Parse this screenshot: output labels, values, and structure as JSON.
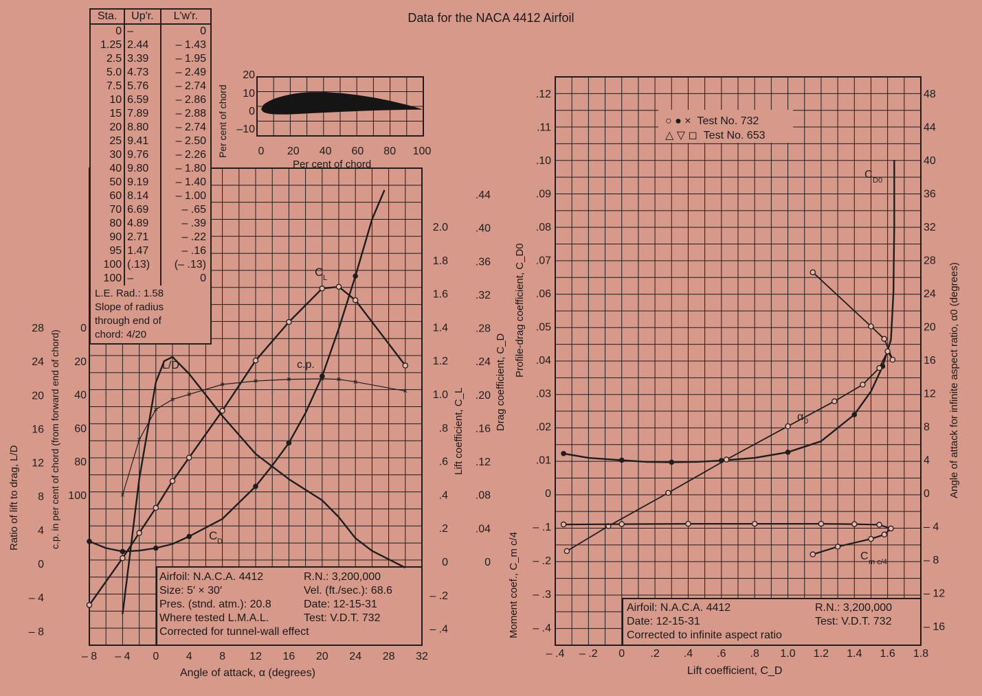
{
  "title": "Data for the NACA 4412 Airfoil",
  "ordinates": {
    "headers": [
      "Sta.",
      "Up'r.",
      "L'w'r."
    ],
    "rows": [
      [
        "0",
        "–",
        "0"
      ],
      [
        "1.25",
        "2.44",
        "– 1.43"
      ],
      [
        "2.5",
        "3.39",
        "– 1.95"
      ],
      [
        "5.0",
        "4.73",
        "– 2.49"
      ],
      [
        "7.5",
        "5.76",
        "– 2.74"
      ],
      [
        "10",
        "6.59",
        "– 2.86"
      ],
      [
        "15",
        "7.89",
        "– 2.88"
      ],
      [
        "20",
        "8.80",
        "– 2.74"
      ],
      [
        "25",
        "9.41",
        "– 2.50"
      ],
      [
        "30",
        "9.76",
        "– 2.26"
      ],
      [
        "40",
        "9.80",
        "– 1.80"
      ],
      [
        "50",
        "9.19",
        "– 1.40"
      ],
      [
        "60",
        "8.14",
        "– 1.00"
      ],
      [
        "70",
        "6.69",
        "– .65"
      ],
      [
        "80",
        "4.89",
        "– .39"
      ],
      [
        "90",
        "2.71",
        "– .22"
      ],
      [
        "95",
        "1.47",
        "– .16"
      ],
      [
        "100",
        "(.13)",
        "(– .13)"
      ],
      [
        "100",
        "–",
        "0"
      ]
    ],
    "notes": [
      "L.E. Rad.: 1.58",
      "Slope of radius",
      "through end of",
      "chord: 4/20"
    ]
  },
  "left_info": {
    "left": [
      "Airfoil: N.A.C.A. 4412",
      "Size: 5′ × 30′",
      "Pres. (stnd. atm.): 20.8",
      "Where tested L.M.A.L.",
      "Corrected for tunnel-wall effect"
    ],
    "right": [
      "R.N.: 3,200,000",
      "Vel. (ft./sec.): 68.6",
      "Date: 12-15-31",
      "Test: V.D.T. 732"
    ]
  },
  "right_info": {
    "left": [
      "Airfoil: N.A.C.A. 4412",
      "Date: 12-15-31",
      "Corrected to infinite aspect ratio"
    ],
    "right": [
      "R.N.: 3,200,000",
      "Test: V.D.T. 732"
    ]
  },
  "legend": [
    {
      "symbols": "○ ● ×",
      "label": "Test No. 732"
    },
    {
      "symbols": "△ ▽ ◻",
      "label": "Test No. 653"
    }
  ],
  "chart_data": [
    {
      "type": "area",
      "name": "airfoil_section",
      "xlabel": "Per cent of chord",
      "ylabel": "Per cent of chord",
      "xticks": [
        "0",
        "20",
        "40",
        "60",
        "80",
        "100"
      ],
      "yticks": [
        "20",
        "10",
        "0",
        "–10"
      ],
      "xlim": [
        0,
        100
      ],
      "ylim": [
        -10,
        20
      ],
      "upper": {
        "x": [
          0,
          1.25,
          2.5,
          5,
          7.5,
          10,
          15,
          20,
          25,
          30,
          40,
          50,
          60,
          70,
          80,
          90,
          95,
          100
        ],
        "y": [
          0,
          2.44,
          3.39,
          4.73,
          5.76,
          6.59,
          7.89,
          8.8,
          9.41,
          9.76,
          9.8,
          9.19,
          8.14,
          6.69,
          4.89,
          2.71,
          1.47,
          0.13
        ]
      },
      "lower": {
        "x": [
          0,
          1.25,
          2.5,
          5,
          7.5,
          10,
          15,
          20,
          25,
          30,
          40,
          50,
          60,
          70,
          80,
          90,
          95,
          100
        ],
        "y": [
          0,
          -1.43,
          -1.95,
          -2.49,
          -2.74,
          -2.86,
          -2.88,
          -2.74,
          -2.5,
          -2.26,
          -1.8,
          -1.4,
          -1.0,
          -0.65,
          -0.39,
          -0.22,
          -0.16,
          -0.13
        ]
      }
    },
    {
      "type": "line",
      "name": "left_plot",
      "xlabel": "Angle of attack, α (degrees)",
      "xlim": [
        -8,
        32
      ],
      "xticks": [
        "– 8",
        "– 4",
        "0",
        "4",
        "8",
        "12",
        "16",
        "20",
        "24",
        "28",
        "32"
      ],
      "axes": {
        "ld": {
          "label": "Ratio of lift to drag, L/D",
          "ticks": [
            "28",
            "24",
            "20",
            "16",
            "12",
            "8",
            "4",
            "0",
            "– 4",
            "– 8"
          ],
          "lim": [
            -8,
            28
          ]
        },
        "cp": {
          "label": "c.p. in per cent of chord (from forward end of chord)",
          "ticks": [
            "0",
            "20",
            "40",
            "60",
            "80",
            "100"
          ],
          "lim": [
            0,
            100
          ]
        },
        "cl": {
          "label": "Lift coefficient, C_L",
          "ticks": [
            "2.0",
            "1.8",
            "1.6",
            "1.4",
            "1.2",
            "1.0",
            ".8",
            ".6",
            ".4",
            ".2",
            "0",
            "– .2",
            "– .4"
          ],
          "lim": [
            -0.4,
            2.0
          ]
        },
        "cd": {
          "label": "Drag coefficient, C_D",
          "ticks": [
            ".44",
            ".40",
            ".36",
            ".32",
            ".28",
            ".24",
            ".20",
            ".16",
            ".12",
            ".08",
            ".04",
            "0"
          ],
          "lim": [
            0,
            0.44
          ]
        }
      },
      "series": [
        {
          "name": "C_L",
          "axis": "cl",
          "x": [
            -8,
            -4,
            -2,
            0,
            2,
            4,
            8,
            12,
            16,
            20,
            22,
            24,
            30
          ],
          "y": [
            -0.26,
            0.02,
            0.17,
            0.32,
            0.48,
            0.62,
            0.9,
            1.2,
            1.43,
            1.63,
            1.64,
            1.56,
            1.17
          ]
        },
        {
          "name": "C_D",
          "axis": "cd",
          "x": [
            -8,
            -6,
            -4,
            -2,
            0,
            2,
            4,
            8,
            12,
            14,
            16,
            18,
            20,
            22,
            24,
            26,
            27.5
          ],
          "y": [
            0.024,
            0.016,
            0.012,
            0.013,
            0.016,
            0.021,
            0.03,
            0.051,
            0.09,
            0.115,
            0.142,
            0.178,
            0.222,
            0.279,
            0.342,
            0.41,
            0.445
          ]
        },
        {
          "name": "L/D",
          "axis": "ld",
          "x": [
            -4,
            -2,
            0,
            1,
            2,
            4,
            8,
            12,
            16,
            20,
            22,
            24,
            26,
            30
          ],
          "y": [
            -6,
            10,
            21.5,
            24,
            24.5,
            22.5,
            17.5,
            13,
            10,
            7.5,
            5.5,
            3,
            1.5,
            -0.5
          ]
        },
        {
          "name": "c.p.",
          "axis": "cp",
          "x": [
            -4,
            -2,
            0,
            2,
            4,
            8,
            12,
            16,
            20,
            22,
            24,
            30
          ],
          "y": [
            100,
            67,
            49,
            43,
            40,
            34,
            32,
            31,
            30.7,
            31,
            32.5,
            38
          ]
        }
      ]
    },
    {
      "type": "line",
      "name": "right_plot",
      "xlabel": "Lift coefficient, C_D",
      "xlim": [
        -0.4,
        1.8
      ],
      "xticks": [
        "– .4",
        "– .2",
        "0",
        ".2",
        ".4",
        ".6",
        ".8",
        "1.0",
        "1.2",
        "1.4",
        "1.6",
        "1.8"
      ],
      "axes": {
        "cd0": {
          "label": "Profile-drag coefficient, C_D0",
          "ticks": [
            ".12",
            ".11",
            ".10",
            ".09",
            ".08",
            ".07",
            ".06",
            ".05",
            ".04",
            ".03",
            ".02",
            ".01",
            "0"
          ],
          "lim": [
            0,
            0.12
          ]
        },
        "cm": {
          "label": "Moment coef., C_m c/4",
          "ticks": [
            "– .1",
            "– .2",
            "– .3",
            "– .4"
          ],
          "lim": [
            -0.4,
            0
          ]
        },
        "alpha0": {
          "label": "Angle of attack for infinite aspect ratio, α0 (degrees)",
          "ticks": [
            "48",
            "44",
            "40",
            "36",
            "32",
            "28",
            "24",
            "20",
            "16",
            "12",
            "8",
            "4",
            "0",
            "– 4",
            "– 8",
            "– 12",
            "– 16"
          ],
          "lim": [
            -16,
            48
          ]
        }
      },
      "series": [
        {
          "name": "C_D0",
          "axis": "cd0",
          "x": [
            -0.35,
            -0.2,
            0,
            0.15,
            0.3,
            0.45,
            0.6,
            0.8,
            1.0,
            1.2,
            1.4,
            1.5,
            1.57,
            1.62,
            1.635,
            1.64,
            1.64
          ],
          "y": [
            0.0118,
            0.0105,
            0.0098,
            0.0093,
            0.0092,
            0.0093,
            0.0097,
            0.0105,
            0.0122,
            0.0155,
            0.0235,
            0.0305,
            0.038,
            0.046,
            0.06,
            0.08,
            0.1
          ]
        },
        {
          "name": "α0",
          "axis": "alpha0",
          "x": [
            -0.33,
            -0.08,
            0.28,
            0.63,
            1.0,
            1.28,
            1.45,
            1.55,
            1.6,
            1.63,
            1.58,
            1.5,
            1.15
          ],
          "y": [
            -7,
            -4,
            0,
            4,
            8,
            11,
            13,
            15,
            17,
            16,
            18.5,
            20,
            26.5
          ]
        },
        {
          "name": "C_m c/4",
          "axis": "cm",
          "x": [
            -0.35,
            0,
            0.4,
            0.8,
            1.2,
            1.4,
            1.55,
            1.62,
            1.58,
            1.5,
            1.3,
            1.15
          ],
          "y": [
            -0.094,
            -0.093,
            -0.092,
            -0.092,
            -0.092,
            -0.093,
            -0.095,
            -0.106,
            -0.124,
            -0.137,
            -0.16,
            -0.183
          ]
        }
      ]
    }
  ]
}
